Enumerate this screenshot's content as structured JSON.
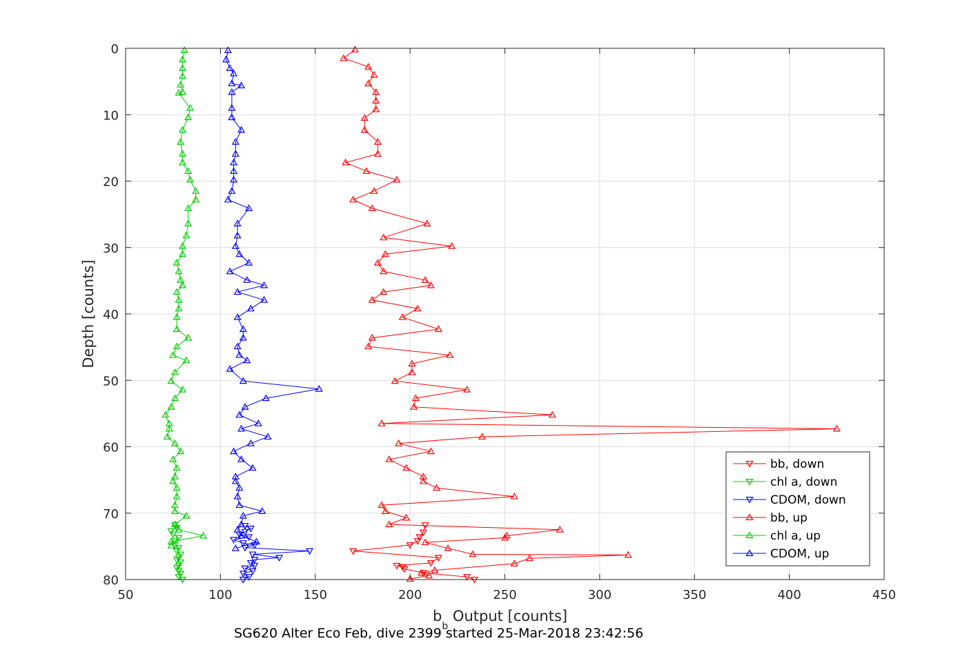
{
  "chart_data": {
    "type": "line",
    "xlabel_main": "b",
    "xlabel_sub": "b",
    "xlabel_rest": " Output [counts]",
    "ylabel": "Depth [counts]",
    "caption": "SG620 Alter Eco Feb, dive 2399 started 25-Mar-2018 23:42:56",
    "xlim": [
      50,
      450
    ],
    "ylim": [
      0,
      80
    ],
    "y_reversed": true,
    "grid": true,
    "legend_position": "bottom-right",
    "x_ticks": [
      "50",
      "100",
      "150",
      "200",
      "250",
      "300",
      "350",
      "400",
      "450"
    ],
    "y_ticks": [
      "0",
      "10",
      "20",
      "30",
      "40",
      "50",
      "60",
      "70",
      "80"
    ],
    "series": [
      {
        "name": "bb, down",
        "color": "#ff0000",
        "marker": "triangle-down",
        "points": [
          [
            234,
            80.0
          ],
          [
            230,
            79.6
          ],
          [
            207,
            79.0
          ],
          [
            197,
            78.4
          ],
          [
            196,
            78.1
          ],
          [
            193,
            77.9
          ],
          [
            211,
            77.5
          ],
          [
            215,
            76.7
          ],
          [
            170,
            75.7
          ],
          [
            200,
            74.8
          ],
          [
            204,
            74.2
          ],
          [
            205,
            73.6
          ],
          [
            207,
            72.9
          ],
          [
            208,
            71.8
          ]
        ]
      },
      {
        "name": "chl a, down",
        "color": "#00cc00",
        "marker": "triangle-down",
        "points": [
          [
            80,
            80.0
          ],
          [
            78,
            79.6
          ],
          [
            79,
            79.1
          ],
          [
            78,
            78.7
          ],
          [
            77,
            78.2
          ],
          [
            78,
            77.9
          ],
          [
            79,
            77.4
          ],
          [
            77,
            77.0
          ],
          [
            78,
            76.7
          ],
          [
            79,
            76.2
          ],
          [
            77,
            75.7
          ],
          [
            78,
            75.2
          ],
          [
            76,
            74.8
          ],
          [
            76,
            74.2
          ],
          [
            78,
            73.7
          ],
          [
            75,
            73.2
          ],
          [
            74,
            72.7
          ],
          [
            77,
            72.2
          ],
          [
            76,
            71.8
          ]
        ]
      },
      {
        "name": "CDOM, down",
        "color": "#0000ff",
        "marker": "triangle-down",
        "points": [
          [
            112,
            80.0
          ],
          [
            115,
            79.6
          ],
          [
            112,
            79.1
          ],
          [
            117,
            78.7
          ],
          [
            113,
            78.3
          ],
          [
            118,
            77.9
          ],
          [
            116,
            77.5
          ],
          [
            118,
            77.0
          ],
          [
            131,
            76.7
          ],
          [
            117,
            76.2
          ],
          [
            147,
            75.7
          ],
          [
            113,
            75.2
          ],
          [
            118,
            74.8
          ],
          [
            112,
            74.5
          ],
          [
            107,
            74.0
          ],
          [
            115,
            73.6
          ],
          [
            110,
            73.2
          ],
          [
            113,
            72.8
          ],
          [
            116,
            72.3
          ],
          [
            113,
            71.9
          ]
        ]
      },
      {
        "name": "bb, up",
        "color": "#ff0000",
        "marker": "triangle-up",
        "points": [
          [
            171,
            0.2
          ],
          [
            165,
            1.5
          ],
          [
            178,
            2.8
          ],
          [
            181,
            4.0
          ],
          [
            178,
            5.3
          ],
          [
            182,
            6.6
          ],
          [
            182,
            7.9
          ],
          [
            182,
            9.2
          ],
          [
            176,
            10.5
          ],
          [
            176,
            12.3
          ],
          [
            183,
            14.1
          ],
          [
            183,
            15.9
          ],
          [
            166,
            17.2
          ],
          [
            177,
            18.5
          ],
          [
            193,
            19.8
          ],
          [
            181,
            21.5
          ],
          [
            170,
            22.8
          ],
          [
            180,
            24.1
          ],
          [
            209,
            26.4
          ],
          [
            186,
            28.5
          ],
          [
            222,
            29.8
          ],
          [
            187,
            31.0
          ],
          [
            183,
            32.3
          ],
          [
            186,
            33.6
          ],
          [
            208,
            34.9
          ],
          [
            211,
            35.7
          ],
          [
            186,
            36.7
          ],
          [
            180,
            37.9
          ],
          [
            204,
            39.2
          ],
          [
            196,
            40.5
          ],
          [
            215,
            42.3
          ],
          [
            180,
            43.6
          ],
          [
            178,
            44.9
          ],
          [
            221,
            46.2
          ],
          [
            201,
            47.5
          ],
          [
            201,
            48.8
          ],
          [
            192,
            50.1
          ],
          [
            230,
            51.4
          ],
          [
            203,
            52.7
          ],
          [
            202,
            54.0
          ],
          [
            275,
            55.2
          ],
          [
            185,
            56.5
          ],
          [
            425,
            57.3
          ],
          [
            238,
            58.5
          ],
          [
            194,
            59.5
          ],
          [
            211,
            60.7
          ],
          [
            189,
            61.9
          ],
          [
            198,
            63.2
          ],
          [
            207,
            64.5
          ],
          [
            207,
            65.2
          ],
          [
            214,
            66.2
          ],
          [
            255,
            67.5
          ],
          [
            185,
            68.8
          ],
          [
            187,
            69.7
          ],
          [
            198,
            70.7
          ],
          [
            189,
            71.7
          ],
          [
            279,
            72.5
          ],
          [
            251,
            73.4
          ],
          [
            250,
            73.7
          ],
          [
            208,
            74.4
          ],
          [
            220,
            75.3
          ],
          [
            233,
            76.2
          ],
          [
            315,
            76.3
          ],
          [
            263,
            76.8
          ],
          [
            255,
            77.6
          ],
          [
            213,
            78.6
          ],
          [
            206,
            79.0
          ],
          [
            210,
            79.4
          ],
          [
            200,
            79.9
          ]
        ]
      },
      {
        "name": "chl a, up",
        "color": "#00cc00",
        "marker": "triangle-up",
        "points": [
          [
            81,
            0.3
          ],
          [
            80,
            1.7
          ],
          [
            80,
            3.0
          ],
          [
            80,
            4.2
          ],
          [
            79,
            5.5
          ],
          [
            80,
            6.6
          ],
          [
            78,
            6.7
          ],
          [
            84,
            9.0
          ],
          [
            83,
            10.4
          ],
          [
            80,
            12.3
          ],
          [
            79,
            14.1
          ],
          [
            80,
            15.9
          ],
          [
            80,
            17.2
          ],
          [
            83,
            18.5
          ],
          [
            84,
            19.8
          ],
          [
            87,
            21.5
          ],
          [
            87,
            22.8
          ],
          [
            83,
            24.1
          ],
          [
            83,
            26.4
          ],
          [
            82,
            28.2
          ],
          [
            80,
            29.8
          ],
          [
            80,
            31.0
          ],
          [
            77,
            32.3
          ],
          [
            78,
            33.6
          ],
          [
            79,
            34.9
          ],
          [
            80,
            35.7
          ],
          [
            77,
            36.7
          ],
          [
            78,
            37.9
          ],
          [
            78,
            39.2
          ],
          [
            77,
            40.5
          ],
          [
            77,
            42.3
          ],
          [
            83,
            43.6
          ],
          [
            77,
            44.9
          ],
          [
            75,
            46.2
          ],
          [
            82,
            47.0
          ],
          [
            76,
            48.8
          ],
          [
            74,
            50.1
          ],
          [
            80,
            51.4
          ],
          [
            76,
            52.7
          ],
          [
            74,
            54.0
          ],
          [
            71,
            55.2
          ],
          [
            73,
            56.5
          ],
          [
            73,
            57.3
          ],
          [
            72,
            58.5
          ],
          [
            76,
            59.5
          ],
          [
            79,
            60.7
          ],
          [
            75,
            61.9
          ],
          [
            77,
            63.2
          ],
          [
            76,
            64.5
          ],
          [
            75,
            65.2
          ],
          [
            77,
            66.2
          ],
          [
            77,
            67.5
          ],
          [
            76,
            68.8
          ],
          [
            76,
            69.7
          ],
          [
            82,
            70.4
          ],
          [
            76,
            71.7
          ],
          [
            78,
            72.5
          ],
          [
            91,
            73.4
          ],
          [
            74,
            74.3
          ],
          [
            74,
            74.9
          ]
        ]
      },
      {
        "name": "CDOM, up",
        "color": "#0000ff",
        "marker": "triangle-up",
        "points": [
          [
            104,
            0.3
          ],
          [
            103,
            1.7
          ],
          [
            105,
            3.0
          ],
          [
            107,
            3.8
          ],
          [
            106,
            5.3
          ],
          [
            111,
            5.6
          ],
          [
            106,
            6.6
          ],
          [
            106,
            9.0
          ],
          [
            106,
            10.4
          ],
          [
            111,
            12.3
          ],
          [
            108,
            14.1
          ],
          [
            108,
            15.9
          ],
          [
            107,
            17.2
          ],
          [
            107,
            18.5
          ],
          [
            107,
            19.8
          ],
          [
            106,
            21.5
          ],
          [
            104,
            22.8
          ],
          [
            115,
            24.1
          ],
          [
            109,
            26.4
          ],
          [
            109,
            28.2
          ],
          [
            108,
            29.8
          ],
          [
            110,
            31.0
          ],
          [
            115,
            32.3
          ],
          [
            105,
            33.6
          ],
          [
            114,
            34.9
          ],
          [
            123,
            35.7
          ],
          [
            109,
            36.7
          ],
          [
            123,
            37.9
          ],
          [
            116,
            39.2
          ],
          [
            109,
            40.5
          ],
          [
            112,
            42.3
          ],
          [
            112,
            43.6
          ],
          [
            109,
            44.9
          ],
          [
            110,
            46.2
          ],
          [
            114,
            47.0
          ],
          [
            105,
            48.3
          ],
          [
            112,
            50.1
          ],
          [
            152,
            51.3
          ],
          [
            124,
            52.7
          ],
          [
            113,
            54.0
          ],
          [
            110,
            55.2
          ],
          [
            120,
            56.5
          ],
          [
            111,
            57.3
          ],
          [
            125,
            58.5
          ],
          [
            116,
            59.5
          ],
          [
            107,
            60.7
          ],
          [
            111,
            61.9
          ],
          [
            117,
            63.2
          ],
          [
            108,
            64.5
          ],
          [
            108,
            65.2
          ],
          [
            110,
            66.2
          ],
          [
            109,
            67.5
          ],
          [
            110,
            68.8
          ],
          [
            122,
            69.7
          ],
          [
            112,
            70.4
          ],
          [
            111,
            71.7
          ],
          [
            109,
            72.5
          ],
          [
            111,
            73.4
          ],
          [
            119,
            74.3
          ],
          [
            108,
            75.3
          ]
        ]
      }
    ]
  }
}
